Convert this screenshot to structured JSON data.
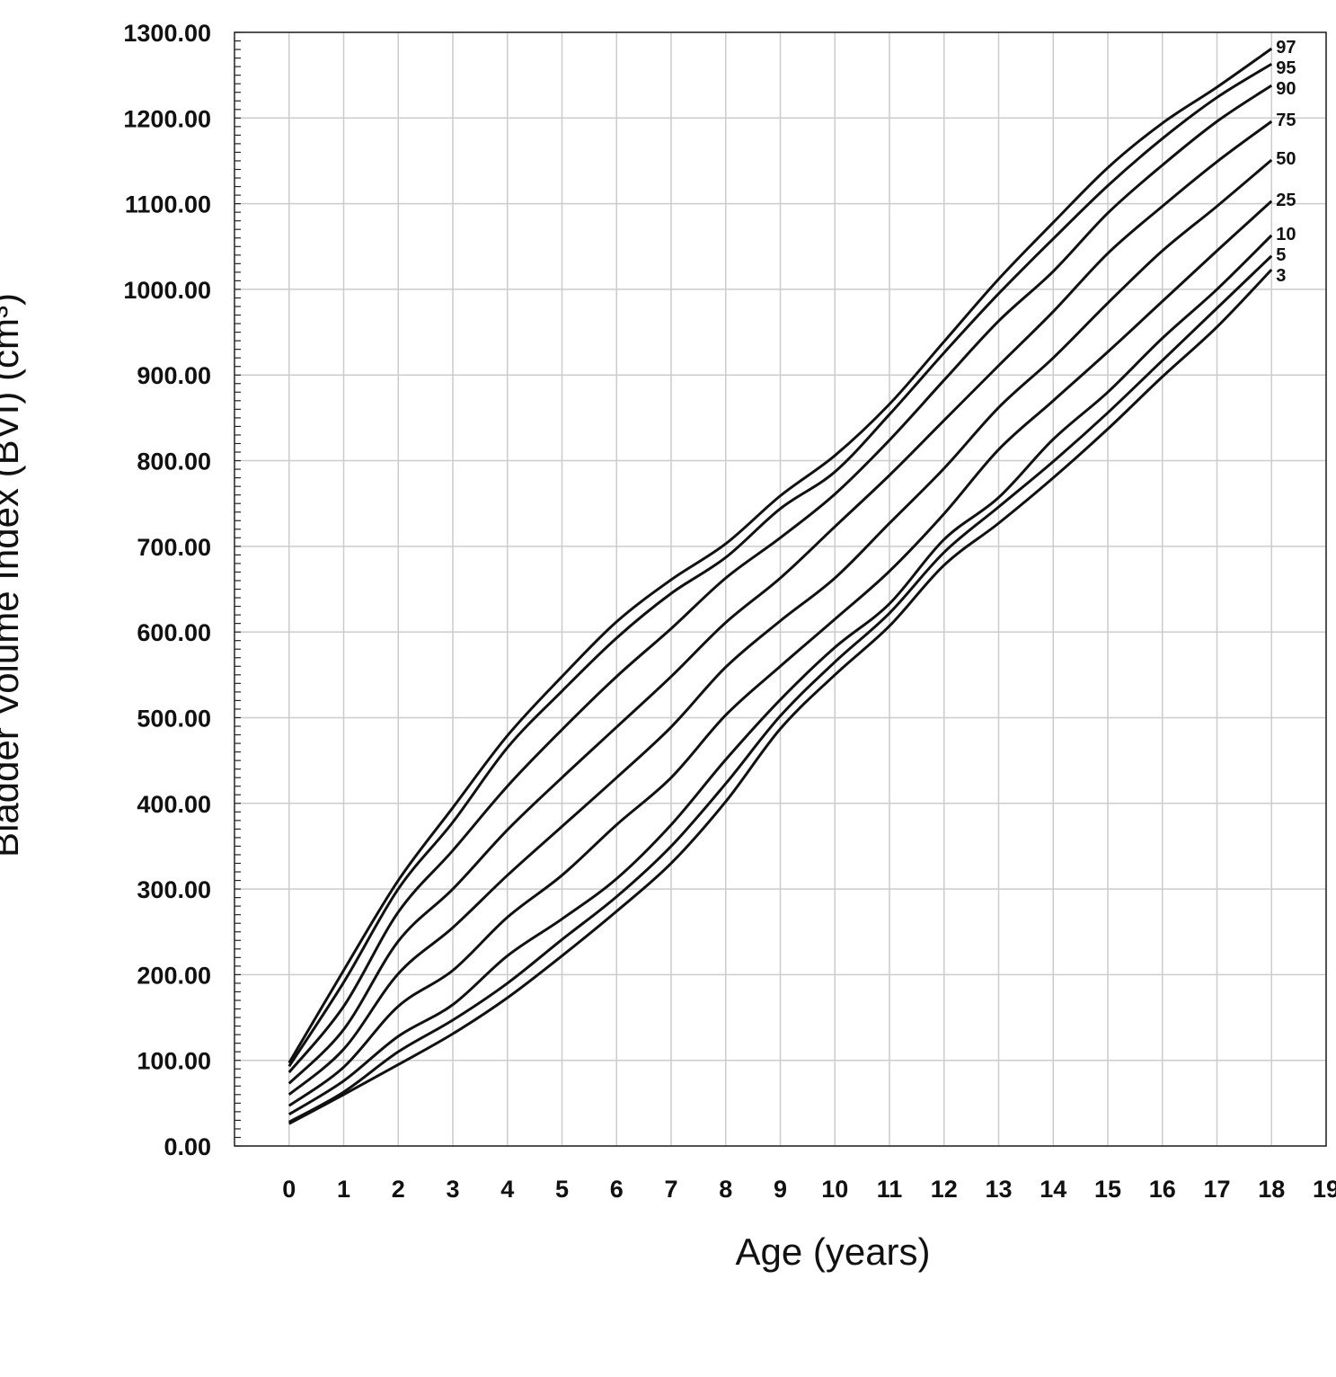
{
  "chart_data": {
    "type": "line",
    "title": "",
    "xlabel": "Age (years)",
    "ylabel": "Bladder Volume Index (BVI) (cm³)",
    "xlim": [
      -1,
      19
    ],
    "ylim": [
      0,
      1300
    ],
    "grid": true,
    "x_ticks": [
      "0",
      "1",
      "2",
      "3",
      "4",
      "5",
      "6",
      "7",
      "8",
      "9",
      "10",
      "11",
      "12",
      "13",
      "14",
      "15",
      "16",
      "17",
      "18",
      "19"
    ],
    "y_ticks": [
      "0.00",
      "100.00",
      "200.00",
      "300.00",
      "400.00",
      "500.00",
      "600.00",
      "700.00",
      "800.00",
      "900.00",
      "1000.00",
      "1100.00",
      "1200.00",
      "1300.00"
    ],
    "line_color": "#111111",
    "grid_color": "#cccccc",
    "x": [
      0,
      1,
      2,
      3,
      4,
      5,
      6,
      7,
      8,
      9,
      10,
      11,
      12,
      13,
      14,
      15,
      16,
      17,
      18
    ],
    "series": [
      {
        "name": "97",
        "values": [
          97,
          205,
          310,
          395,
          479,
          548,
          612,
          661,
          703,
          759,
          806,
          866,
          939,
          1012,
          1078,
          1142,
          1194,
          1236,
          1281
        ]
      },
      {
        "name": "95",
        "values": [
          93,
          191,
          300,
          378,
          465,
          531,
          593,
          645,
          687,
          744,
          787,
          854,
          926,
          995,
          1059,
          1121,
          1176,
          1224,
          1263
        ]
      },
      {
        "name": "90",
        "values": [
          86,
          163,
          273,
          345,
          420,
          486,
          548,
          604,
          663,
          710,
          761,
          824,
          894,
          963,
          1021,
          1089,
          1145,
          1196,
          1238
        ]
      },
      {
        "name": "75",
        "values": [
          73,
          136,
          239,
          300,
          369,
          430,
          489,
          548,
          611,
          663,
          723,
          783,
          847,
          911,
          974,
          1042,
          1097,
          1149,
          1196
        ]
      },
      {
        "name": "50",
        "values": [
          60,
          113,
          201,
          255,
          316,
          373,
          430,
          489,
          559,
          613,
          663,
          727,
          791,
          862,
          920,
          984,
          1045,
          1097,
          1151
        ]
      },
      {
        "name": "25",
        "values": [
          47,
          92,
          163,
          205,
          267,
          316,
          375,
          430,
          503,
          560,
          615,
          671,
          738,
          813,
          870,
          927,
          986,
          1045,
          1103
        ]
      },
      {
        "name": "10",
        "values": [
          37,
          76,
          128,
          165,
          222,
          265,
          312,
          375,
          451,
          521,
          582,
          633,
          708,
          757,
          825,
          880,
          943,
          1000,
          1063
        ]
      },
      {
        "name": "5",
        "values": [
          28,
          63,
          110,
          147,
          190,
          241,
          291,
          350,
          423,
          502,
          565,
          622,
          693,
          746,
          799,
          856,
          917,
          978,
          1039
        ]
      },
      {
        "name": "3",
        "values": [
          26,
          60,
          95,
          131,
          173,
          222,
          274,
          330,
          402,
          487,
          550,
          607,
          678,
          727,
          780,
          837,
          898,
          956,
          1023
        ]
      }
    ]
  }
}
